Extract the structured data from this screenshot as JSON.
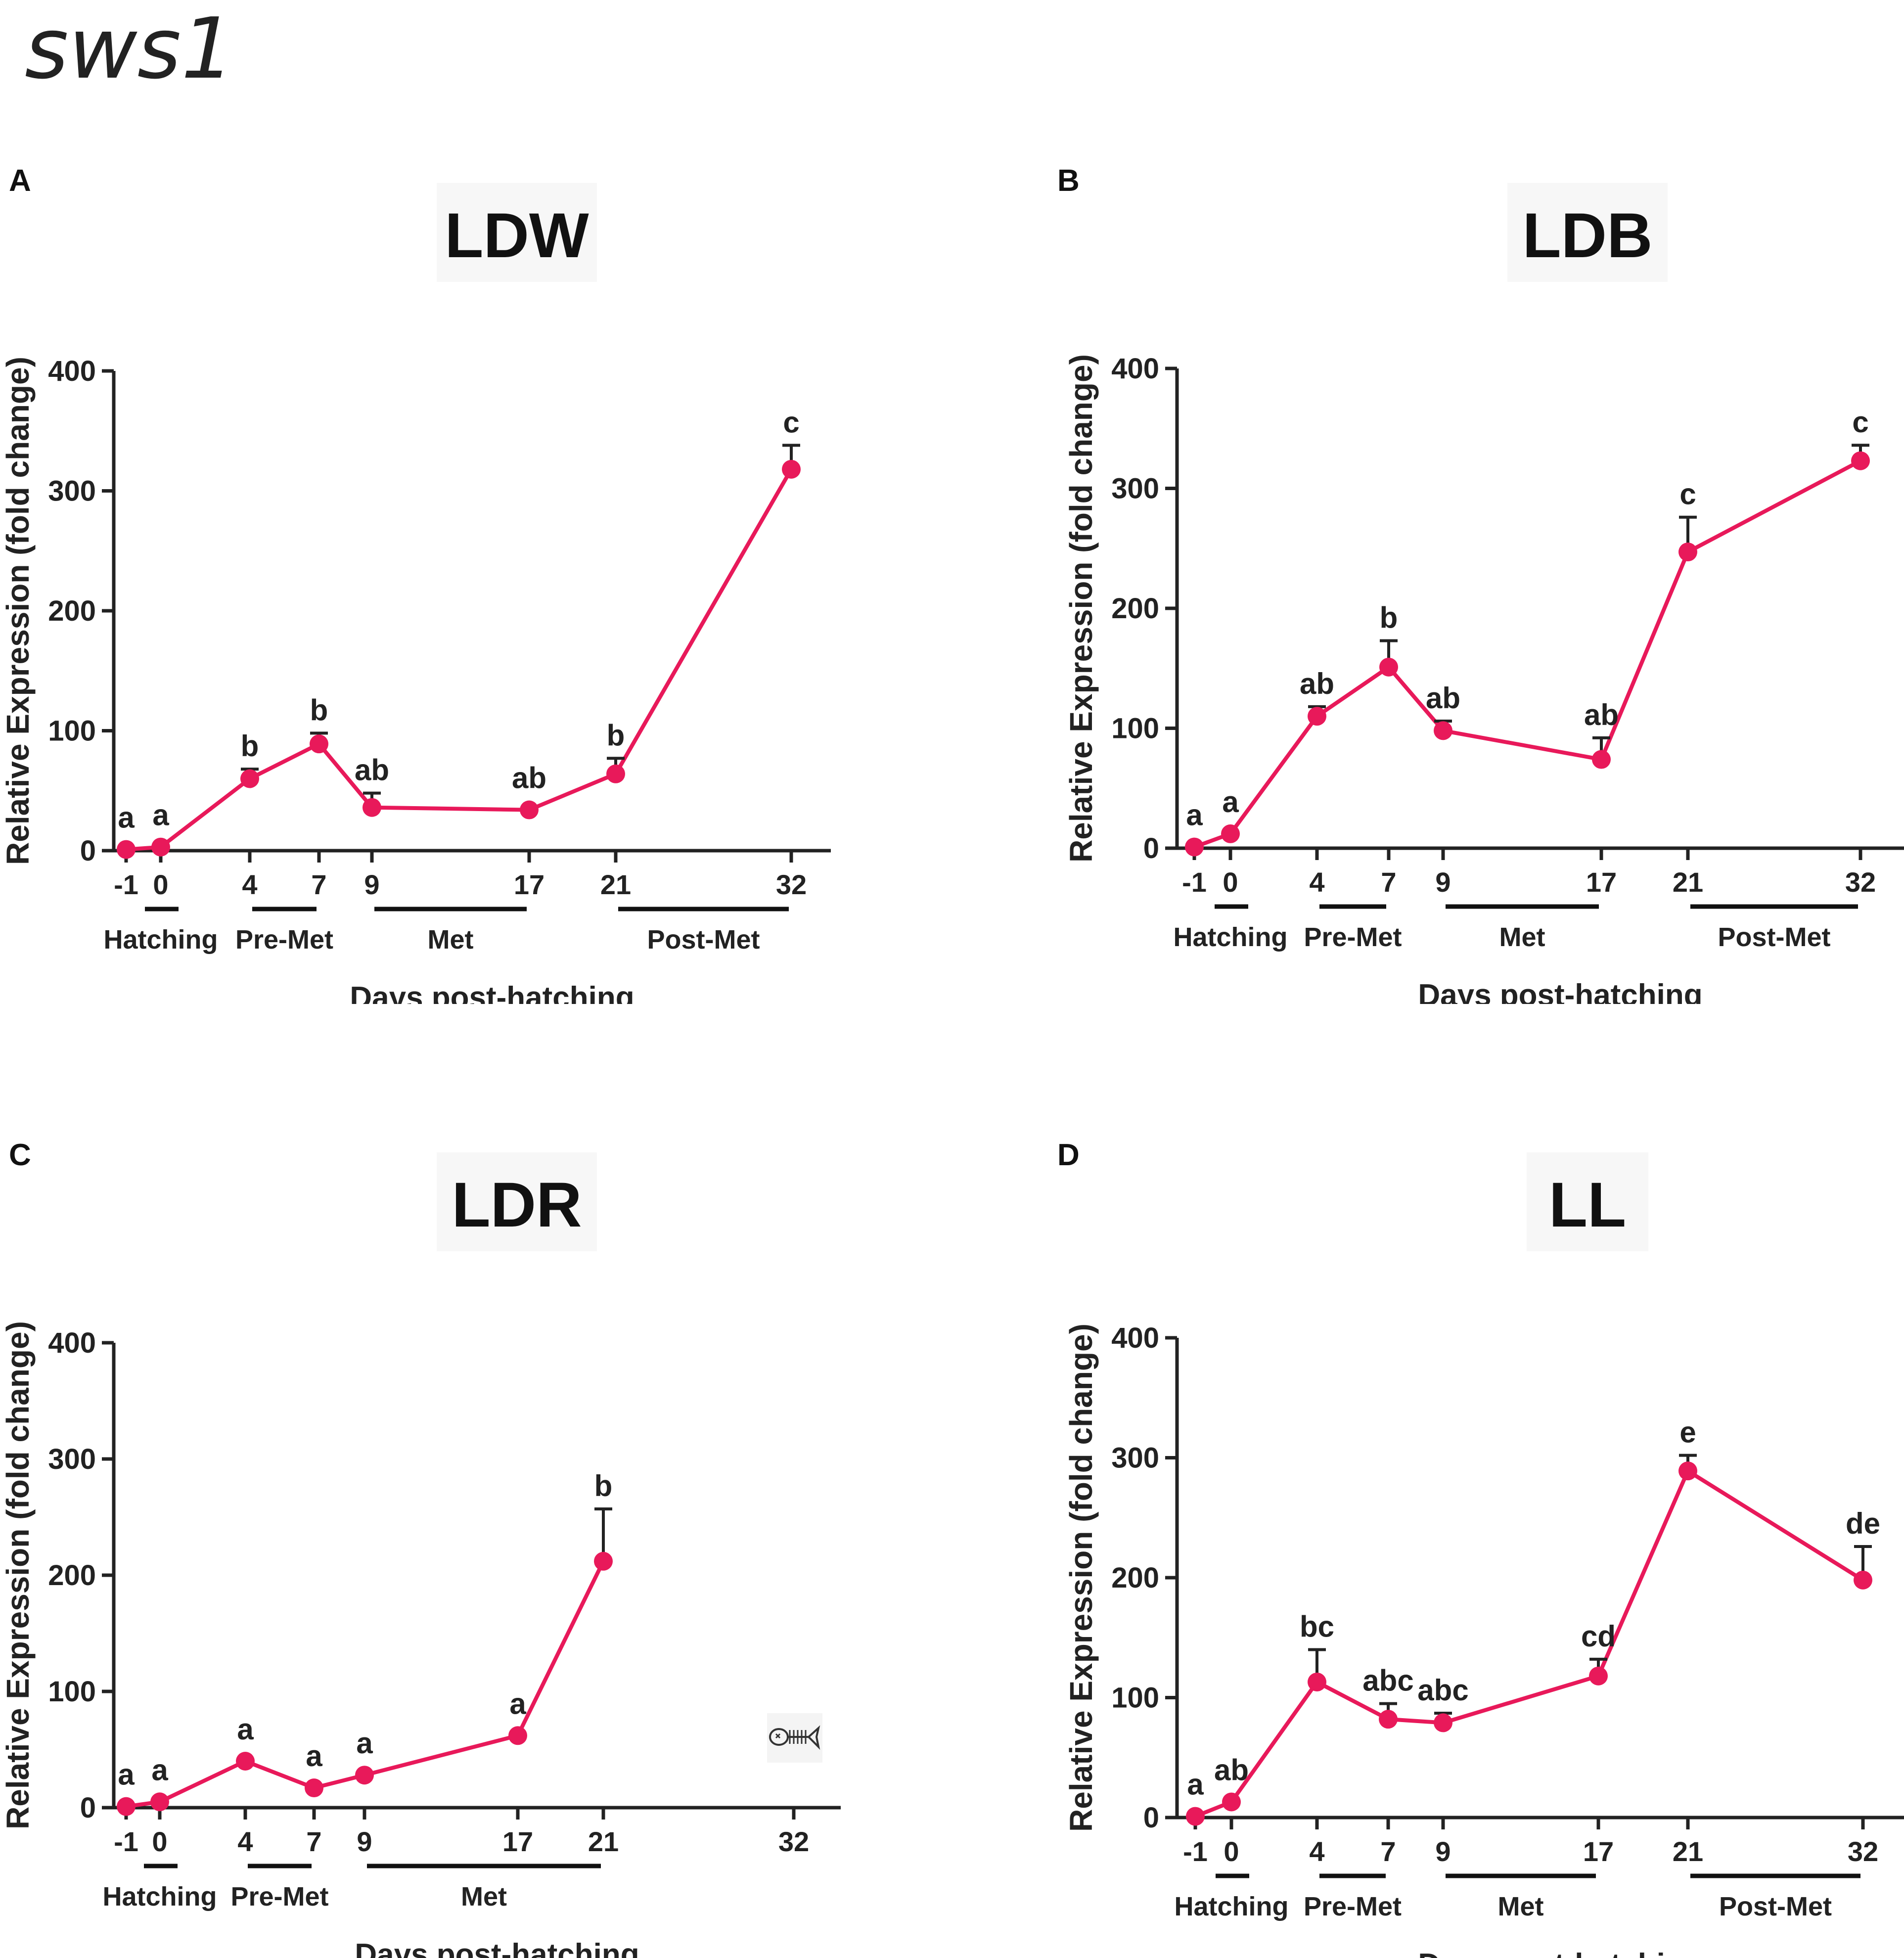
{
  "figure_title": "sws1",
  "chart_data": [
    {
      "panel_label": "A",
      "type": "line",
      "title": "LDW",
      "xlabel": "Days post-hatching",
      "ylabel": "Relative Expression (fold change)",
      "ylim": [
        0,
        400
      ],
      "yticks": [
        0,
        100,
        200,
        300,
        400
      ],
      "x_positions": [
        -1,
        0,
        4,
        7,
        9,
        17,
        21,
        32
      ],
      "x_tick_labels": [
        "-1",
        "0",
        "4",
        "7",
        "9",
        "17",
        "21",
        "32"
      ],
      "phases": [
        {
          "name": "Hatching",
          "start": -1,
          "end": 0
        },
        {
          "name": "Pre-Met",
          "start": 4,
          "end": 7
        },
        {
          "name": "Met",
          "start": 9,
          "end": 17
        },
        {
          "name": "Post-Met",
          "start": 21,
          "end": 32
        }
      ],
      "series": [
        {
          "name": "sws1",
          "color": "#e8195a",
          "points": [
            {
              "x": -1,
              "y": 1,
              "err": 0,
              "label": "a"
            },
            {
              "x": 0,
              "y": 3,
              "err": 0,
              "label": "a"
            },
            {
              "x": 4,
              "y": 60,
              "err": 8,
              "label": "b"
            },
            {
              "x": 7,
              "y": 89,
              "err": 9,
              "label": "b"
            },
            {
              "x": 9,
              "y": 36,
              "err": 12,
              "label": "ab"
            },
            {
              "x": 17,
              "y": 34,
              "err": 0,
              "label": "ab"
            },
            {
              "x": 21,
              "y": 64,
              "err": 13,
              "label": "b"
            },
            {
              "x": 32,
              "y": 318,
              "err": 20,
              "label": "c"
            }
          ]
        }
      ]
    },
    {
      "panel_label": "B",
      "type": "line",
      "title": "LDB",
      "xlabel": "Days post-hatching",
      "ylabel": "Relative Expression (fold change)",
      "ylim": [
        0,
        400
      ],
      "yticks": [
        0,
        100,
        200,
        300,
        400
      ],
      "x_positions": [
        -1,
        0,
        4,
        7,
        9,
        17,
        21,
        32
      ],
      "x_tick_labels": [
        "-1",
        "0",
        "4",
        "7",
        "9",
        "17",
        "21",
        "32"
      ],
      "phases": [
        {
          "name": "Hatching",
          "start": -1,
          "end": 0
        },
        {
          "name": "Pre-Met",
          "start": 4,
          "end": 7
        },
        {
          "name": "Met",
          "start": 9,
          "end": 17
        },
        {
          "name": "Post-Met",
          "start": 21,
          "end": 32
        }
      ],
      "series": [
        {
          "name": "sws1",
          "color": "#e8195a",
          "points": [
            {
              "x": -1,
              "y": 1,
              "err": 0,
              "label": "a"
            },
            {
              "x": 0,
              "y": 12,
              "err": 0,
              "label": "a"
            },
            {
              "x": 4,
              "y": 110,
              "err": 8,
              "label": "ab"
            },
            {
              "x": 7,
              "y": 151,
              "err": 22,
              "label": "b"
            },
            {
              "x": 9,
              "y": 98,
              "err": 8,
              "label": "ab"
            },
            {
              "x": 17,
              "y": 74,
              "err": 18,
              "label": "ab"
            },
            {
              "x": 21,
              "y": 247,
              "err": 29,
              "label": "c"
            },
            {
              "x": 32,
              "y": 323,
              "err": 13,
              "label": "c"
            }
          ]
        }
      ]
    },
    {
      "panel_label": "C",
      "type": "line",
      "title": "LDR",
      "xlabel": "Days post-hatching",
      "ylabel": "Relative Expression (fold change)",
      "ylim": [
        0,
        400
      ],
      "yticks": [
        0,
        100,
        200,
        300,
        400
      ],
      "x_positions": [
        -1,
        0,
        4,
        7,
        9,
        17,
        21,
        32
      ],
      "x_tick_labels": [
        "-1",
        "0",
        "4",
        "7",
        "9",
        "17",
        "21",
        "32"
      ],
      "phases": [
        {
          "name": "Hatching",
          "start": -1,
          "end": 0
        },
        {
          "name": "Pre-Met",
          "start": 4,
          "end": 7
        },
        {
          "name": "Met",
          "start": 9,
          "end": 21
        }
      ],
      "annotation_icon": "dead-fish-icon",
      "series": [
        {
          "name": "sws1",
          "color": "#e8195a",
          "points": [
            {
              "x": -1,
              "y": 1,
              "err": 0,
              "label": "a"
            },
            {
              "x": 0,
              "y": 5,
              "err": 0,
              "label": "a"
            },
            {
              "x": 4,
              "y": 40,
              "err": 0,
              "label": "a"
            },
            {
              "x": 7,
              "y": 17,
              "err": 0,
              "label": "a"
            },
            {
              "x": 9,
              "y": 28,
              "err": 0,
              "label": "a"
            },
            {
              "x": 17,
              "y": 62,
              "err": 0,
              "label": "a"
            },
            {
              "x": 21,
              "y": 212,
              "err": 45,
              "label": "b"
            }
          ]
        }
      ]
    },
    {
      "panel_label": "D",
      "type": "line",
      "title": "LL",
      "xlabel": "Days post-hatching",
      "ylabel": "Relative Expression (fold change)",
      "ylim": [
        0,
        400
      ],
      "yticks": [
        0,
        100,
        200,
        300,
        400
      ],
      "x_positions": [
        -1,
        0,
        4,
        7,
        9,
        17,
        21,
        32
      ],
      "x_tick_labels": [
        "-1",
        "0",
        "4",
        "7",
        "9",
        "17",
        "21",
        "32"
      ],
      "phases": [
        {
          "name": "Hatching",
          "start": -1,
          "end": 0
        },
        {
          "name": "Pre-Met",
          "start": 4,
          "end": 7
        },
        {
          "name": "Met",
          "start": 9,
          "end": 17
        },
        {
          "name": "Post-Met",
          "start": 21,
          "end": 32
        }
      ],
      "series": [
        {
          "name": "sws1",
          "color": "#e8195a",
          "points": [
            {
              "x": -1,
              "y": 1,
              "err": 0,
              "label": "a"
            },
            {
              "x": 0,
              "y": 13,
              "err": 0,
              "label": "ab"
            },
            {
              "x": 4,
              "y": 113,
              "err": 27,
              "label": "bc"
            },
            {
              "x": 7,
              "y": 82,
              "err": 13,
              "label": "abc"
            },
            {
              "x": 9,
              "y": 79,
              "err": 8,
              "label": "abc"
            },
            {
              "x": 17,
              "y": 118,
              "err": 14,
              "label": "cd"
            },
            {
              "x": 21,
              "y": 289,
              "err": 13,
              "label": "e"
            },
            {
              "x": 32,
              "y": 198,
              "err": 28,
              "label": "de"
            }
          ]
        }
      ]
    }
  ]
}
